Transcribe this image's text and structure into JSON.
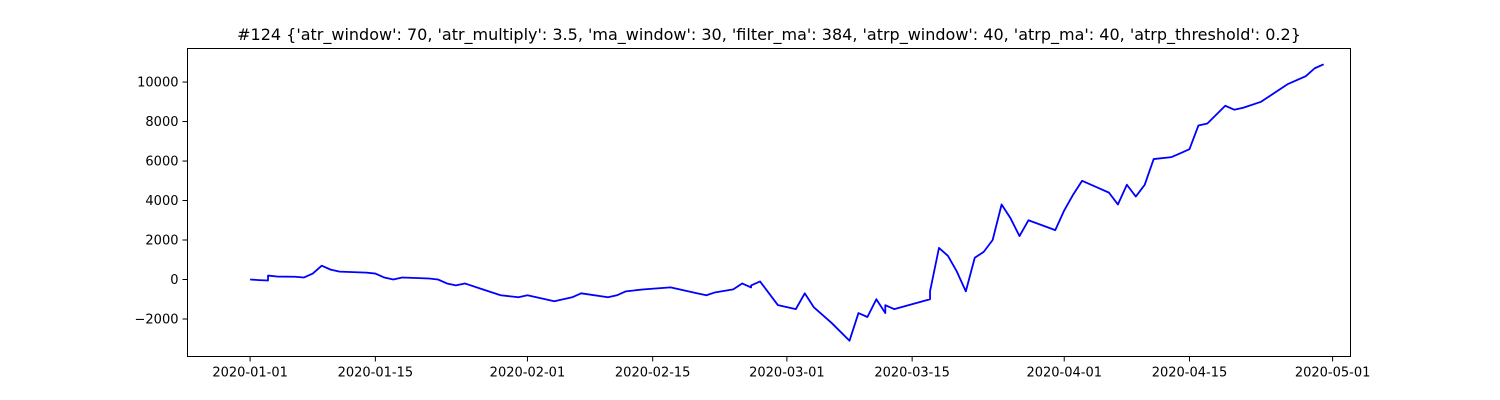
{
  "chart_data": {
    "type": "line",
    "title": "#124 {'atr_window': 70, 'atr_multiply': 3.5, 'ma_window': 30, 'filter_ma': 384, 'atrp_window': 40, 'atrp_ma': 40, 'atrp_threshold': 0.2}",
    "xlabel": "",
    "ylabel": "",
    "xlim": [
      "2019-12-25",
      "2020-05-03"
    ],
    "ylim": [
      -3900,
      11700
    ],
    "x_ticks": [
      "2020-01-01",
      "2020-01-15",
      "2020-02-01",
      "2020-02-15",
      "2020-03-01",
      "2020-03-15",
      "2020-04-01",
      "2020-04-15",
      "2020-05-01"
    ],
    "y_ticks": [
      -2000,
      0,
      2000,
      4000,
      6000,
      8000,
      10000
    ],
    "y_tick_labels": [
      "−2000",
      "0",
      "2000",
      "4000",
      "6000",
      "8000",
      "10000"
    ],
    "grid": false,
    "legend": "none",
    "series": [
      {
        "color": "#0000ff",
        "x": [
          "2020-01-01",
          "2020-01-01",
          "2020-01-02",
          "2020-01-03",
          "2020-01-03",
          "2020-01-04",
          "2020-01-06",
          "2020-01-07",
          "2020-01-08",
          "2020-01-09",
          "2020-01-10",
          "2020-01-11",
          "2020-01-14",
          "2020-01-15",
          "2020-01-16",
          "2020-01-17",
          "2020-01-18",
          "2020-01-21",
          "2020-01-22",
          "2020-01-23",
          "2020-01-24",
          "2020-01-25",
          "2020-01-27",
          "2020-01-29",
          "2020-01-30",
          "2020-01-31",
          "2020-02-01",
          "2020-02-03",
          "2020-02-04",
          "2020-02-05",
          "2020-02-06",
          "2020-02-07",
          "2020-02-10",
          "2020-02-11",
          "2020-02-12",
          "2020-02-14",
          "2020-02-17",
          "2020-02-19",
          "2020-02-20",
          "2020-02-21",
          "2020-02-22",
          "2020-02-24",
          "2020-02-25",
          "2020-02-26",
          "2020-02-26",
          "2020-02-27",
          "2020-02-28",
          "2020-02-29",
          "2020-03-02",
          "2020-03-03",
          "2020-03-04",
          "2020-03-05",
          "2020-03-06",
          "2020-03-08",
          "2020-03-09",
          "2020-03-10",
          "2020-03-11",
          "2020-03-12",
          "2020-03-12",
          "2020-03-13",
          "2020-03-17",
          "2020-03-17",
          "2020-03-18",
          "2020-03-19",
          "2020-03-20",
          "2020-03-21",
          "2020-03-22",
          "2020-03-23",
          "2020-03-24",
          "2020-03-25",
          "2020-03-26",
          "2020-03-27",
          "2020-03-28",
          "2020-03-31",
          "2020-04-01",
          "2020-04-02",
          "2020-04-03",
          "2020-04-05",
          "2020-04-06",
          "2020-04-07",
          "2020-04-08",
          "2020-04-09",
          "2020-04-10",
          "2020-04-11",
          "2020-04-13",
          "2020-04-14",
          "2020-04-15",
          "2020-04-16",
          "2020-04-17",
          "2020-04-19",
          "2020-04-20",
          "2020-04-21",
          "2020-04-23",
          "2020-04-24",
          "2020-04-26",
          "2020-04-28",
          "2020-04-29",
          "2020-04-30"
        ],
        "y": [
          0,
          0,
          -30,
          -50,
          200,
          150,
          140,
          100,
          300,
          700,
          500,
          400,
          350,
          300,
          100,
          0,
          100,
          50,
          0,
          -200,
          -300,
          -200,
          -500,
          -800,
          -850,
          -900,
          -800,
          -1000,
          -1100,
          -1000,
          -900,
          -700,
          -900,
          -800,
          -600,
          -500,
          -400,
          -600,
          -700,
          -800,
          -650,
          -500,
          -200,
          -400,
          -300,
          -100,
          -700,
          -1300,
          -1500,
          -700,
          -1400,
          -1800,
          -2200,
          -3100,
          -1700,
          -1900,
          -1000,
          -1700,
          -1300,
          -1500,
          -1000,
          -600,
          1600,
          1200,
          400,
          -600,
          1100,
          1400,
          2000,
          3800,
          3100,
          2200,
          3000,
          2500,
          3500,
          4300,
          5000,
          4600,
          4400,
          3800,
          4800,
          4200,
          4800,
          6100,
          6200,
          6400,
          6600,
          7800,
          7900,
          8800,
          8600,
          8700,
          9000,
          9300,
          9900,
          10300,
          10700,
          10900
        ]
      }
    ]
  }
}
